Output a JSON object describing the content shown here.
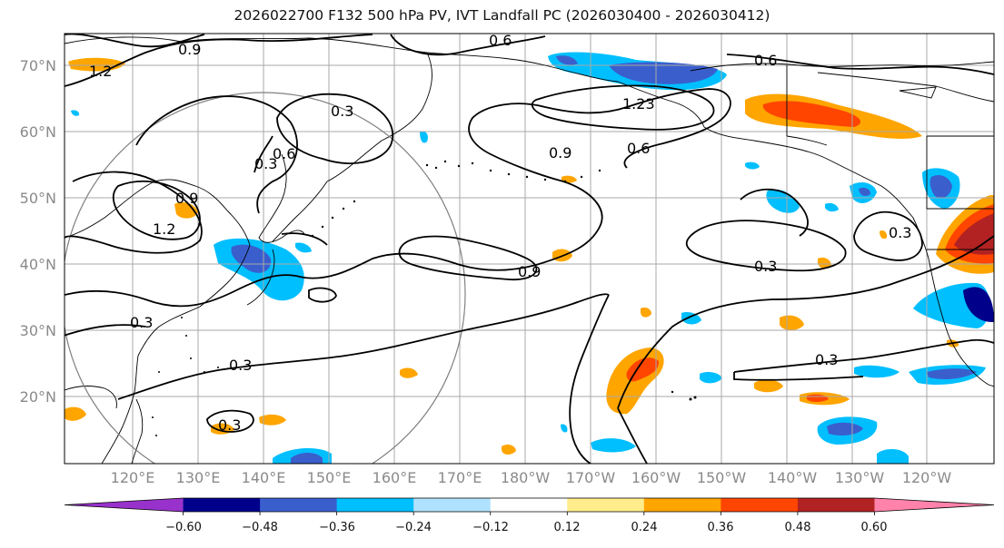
{
  "title": "2026022700 F132 500 hPa PV, IVT Landfall PC (2026030400 - 2026030412)",
  "lat_labels": [
    "70°N",
    "60°N",
    "50°N",
    "40°N",
    "30°N",
    "20°N"
  ],
  "lon_labels": [
    "120°E",
    "130°E",
    "140°E",
    "150°E",
    "160°E",
    "170°E",
    "180°W",
    "170°W",
    "160°W",
    "150°W",
    "140°W",
    "130°W",
    "120°W"
  ],
  "colorbar": {
    "ticks": [
      "−0.60",
      "−0.48",
      "−0.36",
      "−0.24",
      "−0.12",
      "0.12",
      "0.24",
      "0.36",
      "0.48",
      "0.60"
    ],
    "colors": [
      "#9932cc",
      "#00008b",
      "#3a5fcd",
      "#00bfff",
      "#b0e2ff",
      "#ffffff",
      "#ffec8b",
      "#ffa500",
      "#ff4500",
      "#b22222",
      "#ff82ab"
    ]
  },
  "contour_labels": [
    "0.9",
    "0.6",
    "0.3",
    "1.2",
    "0.6",
    "1.23",
    "0.9",
    "0.6",
    "0.3",
    "0.9",
    "1.2",
    "0.3",
    "0.9",
    "0.3",
    "0.3",
    "0.3",
    "0.3",
    "0.6",
    "0.3"
  ]
}
